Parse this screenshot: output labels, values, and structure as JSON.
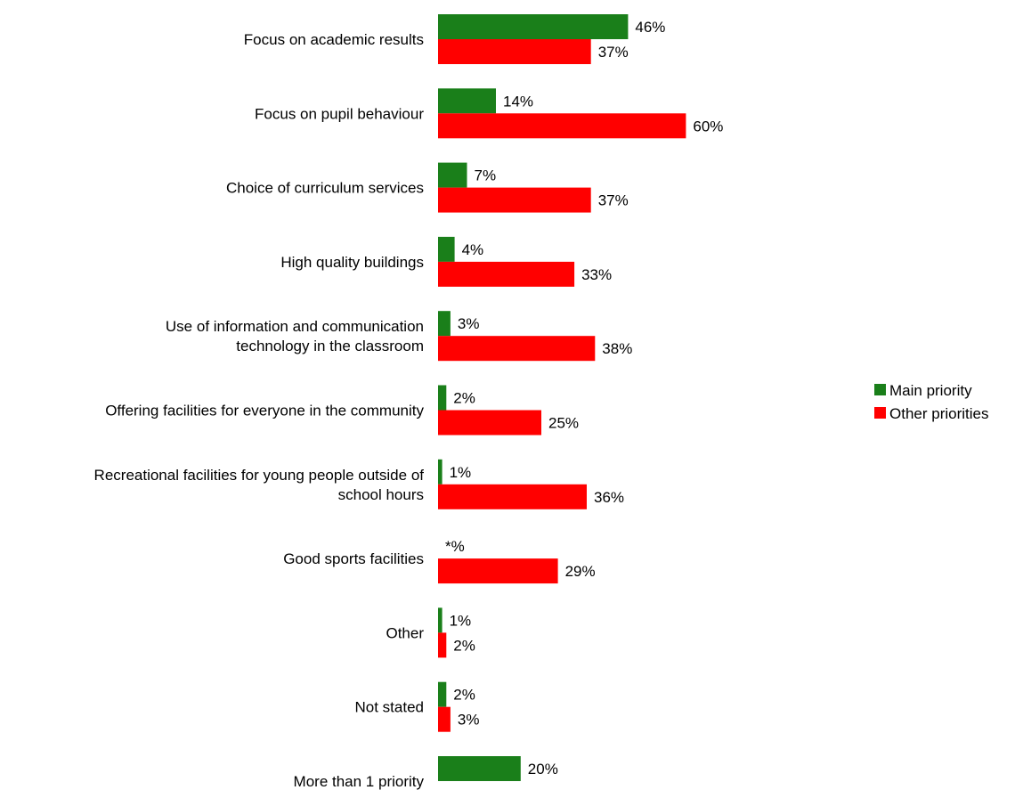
{
  "chart_data": {
    "type": "bar",
    "orientation": "horizontal",
    "categories": [
      [
        "Focus on academic results"
      ],
      [
        "Focus on pupil behaviour"
      ],
      [
        "Choice of curriculum services"
      ],
      [
        "High quality buildings"
      ],
      [
        "Use of  information and communication",
        "technology in the classroom"
      ],
      [
        "Offering facilities for everyone in the community"
      ],
      [
        "Recreational facilities for young people outside of",
        "school hours"
      ],
      [
        "Good sports facilities"
      ],
      [
        "Other"
      ],
      [
        "Not stated"
      ],
      [
        "More than 1 priority"
      ]
    ],
    "series": [
      {
        "name": "Main priority",
        "color": "#1a7f1a",
        "values": [
          46,
          14,
          7,
          4,
          3,
          2,
          1,
          0,
          1,
          2,
          20
        ],
        "labels": [
          "46%",
          "14%",
          "7%",
          "4%",
          "3%",
          "2%",
          "1%",
          "*%",
          "1%",
          "2%",
          "20%"
        ]
      },
      {
        "name": "Other priorities",
        "color": "#ff0000",
        "values": [
          37,
          60,
          37,
          33,
          38,
          25,
          36,
          29,
          2,
          3,
          null
        ],
        "labels": [
          "37%",
          "60%",
          "37%",
          "33%",
          "38%",
          "25%",
          "36%",
          "29%",
          "2%",
          "3%",
          null
        ]
      }
    ],
    "xlim": [
      0,
      100
    ],
    "grid": false,
    "legend_position": "right"
  }
}
